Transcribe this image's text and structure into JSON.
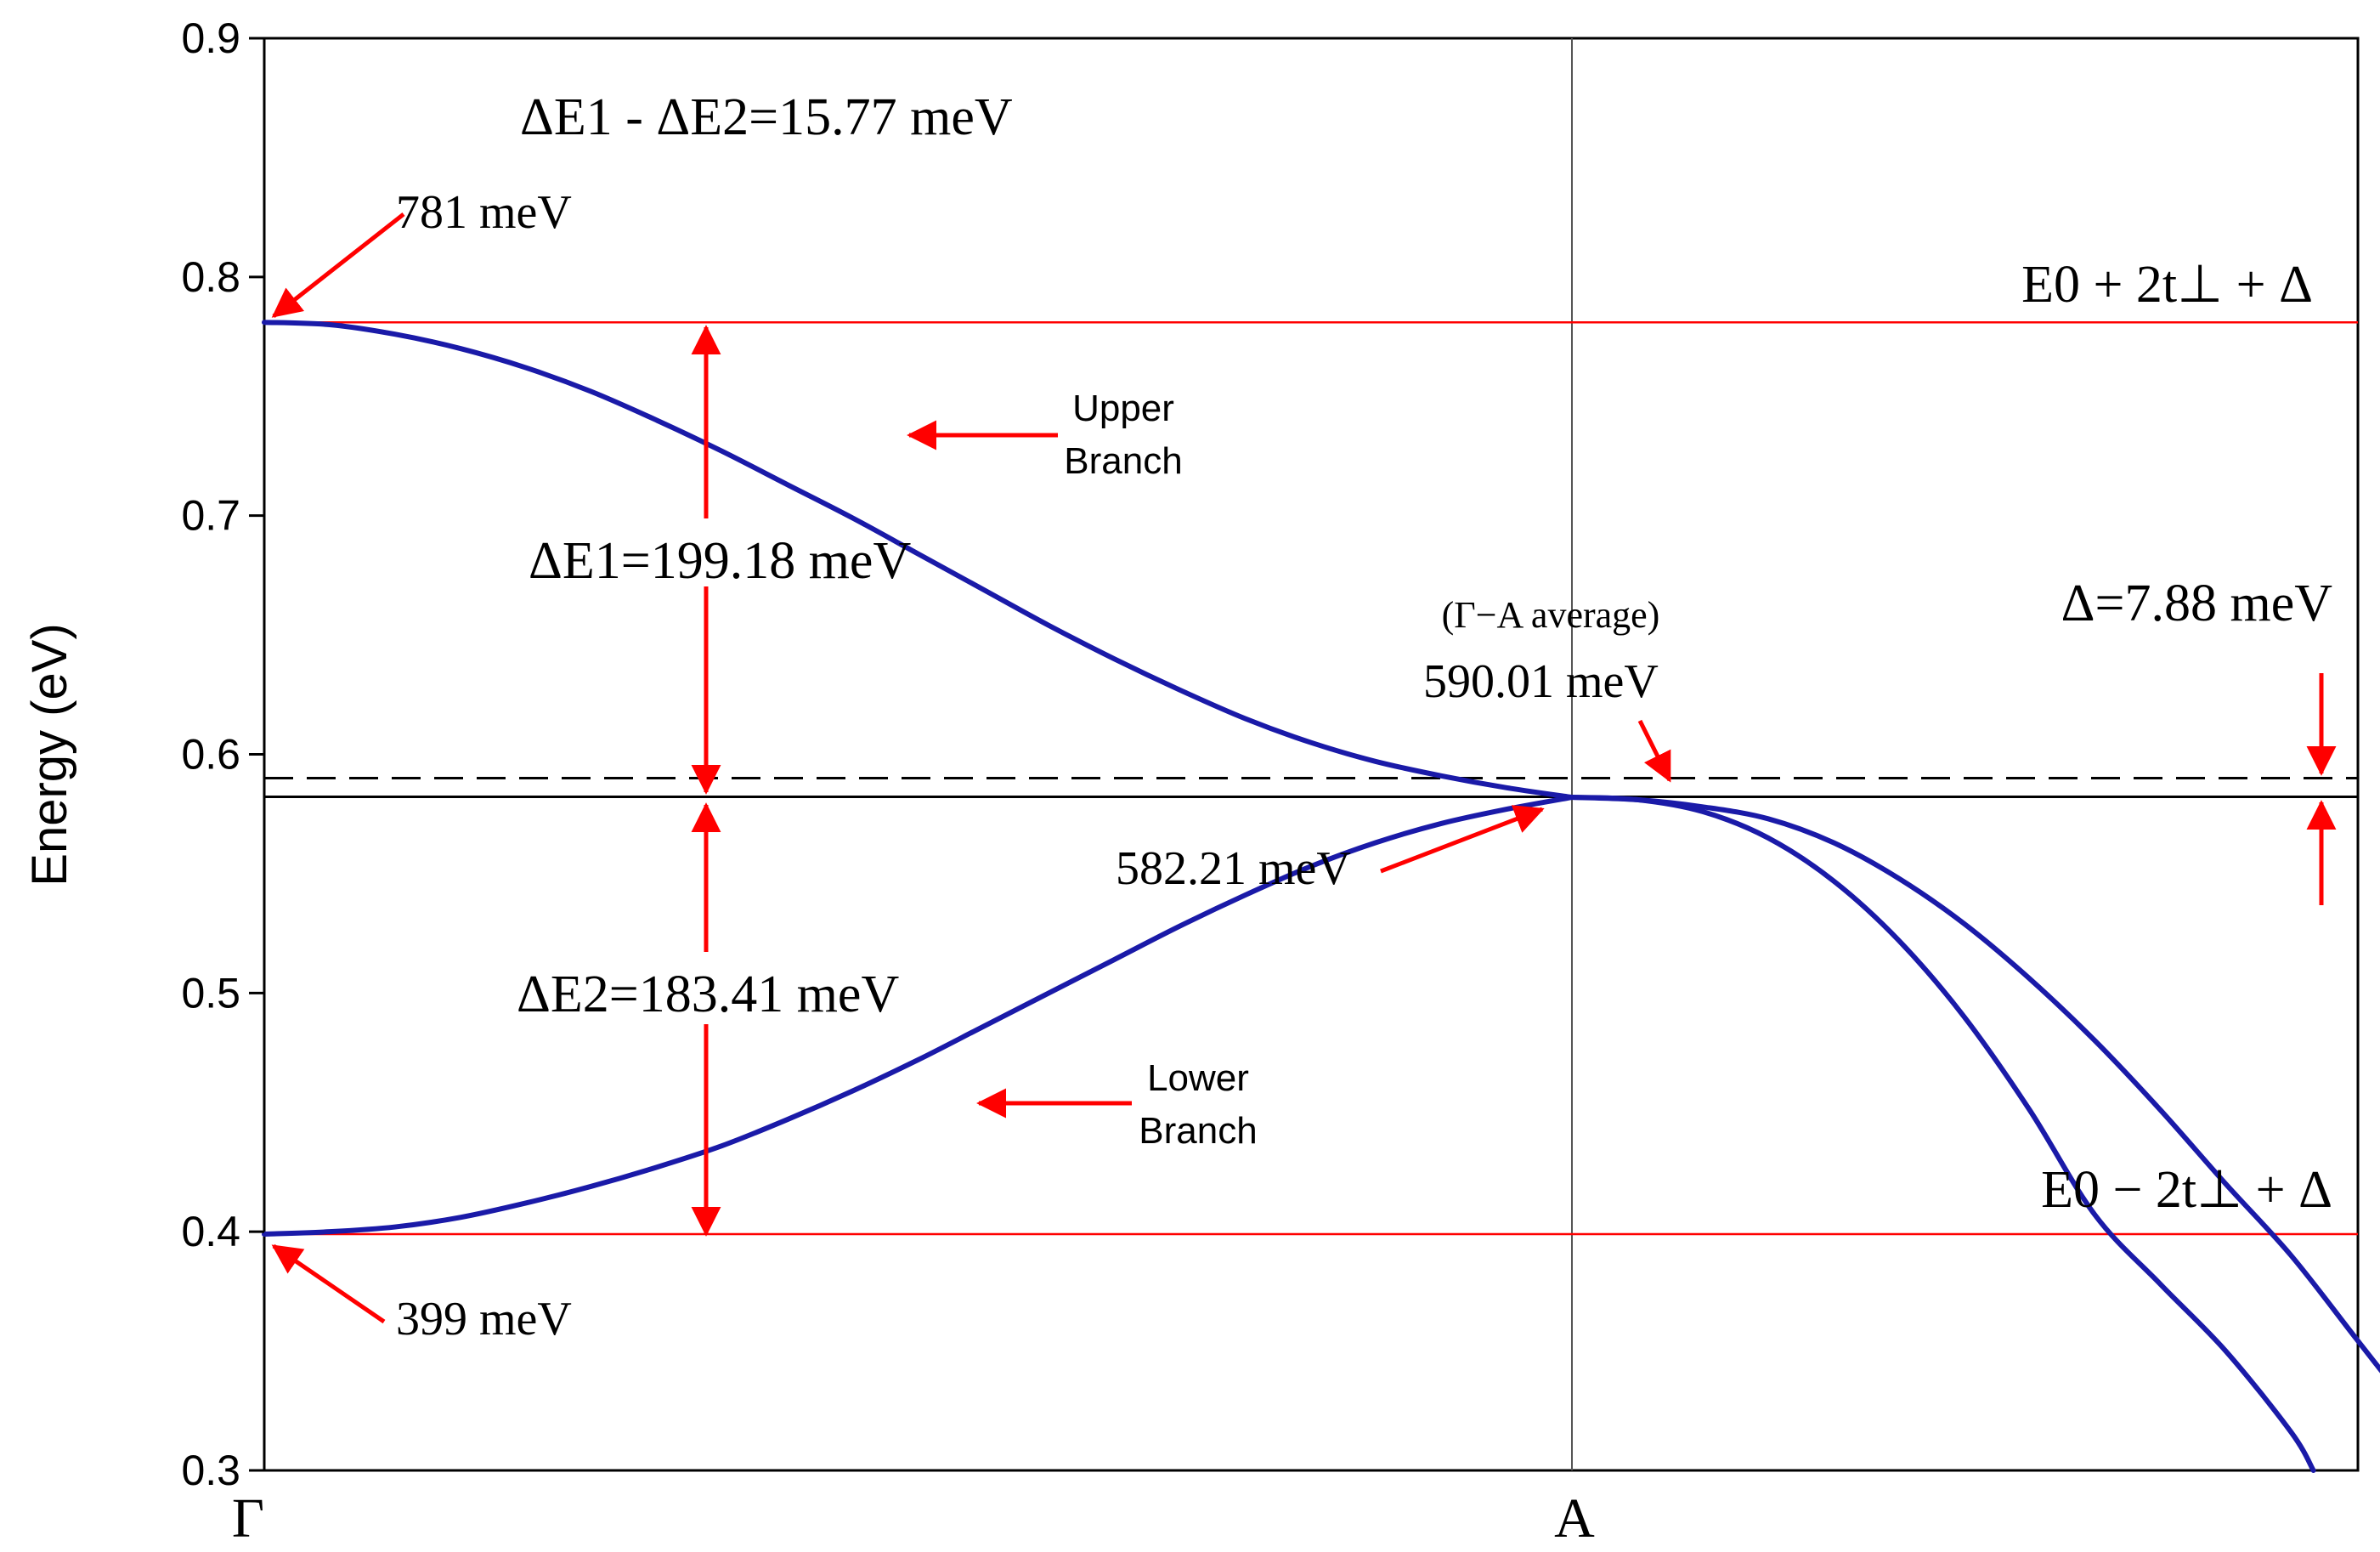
{
  "chart_data": {
    "type": "line",
    "ylabel": "Energy (eV)",
    "ylim": [
      0.3,
      0.9
    ],
    "y_ticks": [
      "0.9",
      "0.8",
      "0.7",
      "0.6",
      "0.5",
      "0.4",
      "0.3"
    ],
    "x_tick_labels": [
      "Γ",
      "A"
    ],
    "grid": false,
    "colors": {
      "band": "#1a1aa8",
      "reference": "#ff0000",
      "arrow": "#ff0000"
    },
    "series": [
      {
        "x": [
          0,
          0.05,
          0.1,
          0.15,
          0.2,
          0.25,
          0.3,
          0.35,
          0.4,
          0.45,
          0.5,
          0.55,
          0.6,
          0.65,
          0.7,
          0.75,
          0.8,
          0.85,
          0.9,
          0.95,
          1.0
        ],
        "values": [
          0.781,
          0.78,
          0.776,
          0.77,
          0.762,
          0.752,
          0.74,
          0.727,
          0.713,
          0.699,
          0.684,
          0.669,
          0.654,
          0.64,
          0.627,
          0.615,
          0.605,
          0.597,
          0.591,
          0.586,
          0.582
        ]
      },
      {
        "x": [
          0,
          0.05,
          0.1,
          0.15,
          0.2,
          0.25,
          0.3,
          0.35,
          0.4,
          0.45,
          0.5,
          0.55,
          0.6,
          0.65,
          0.7,
          0.75,
          0.8,
          0.85,
          0.9,
          0.95,
          1.0
        ],
        "values": [
          0.399,
          0.4,
          0.402,
          0.406,
          0.412,
          0.419,
          0.427,
          0.436,
          0.447,
          0.459,
          0.472,
          0.486,
          0.5,
          0.514,
          0.528,
          0.541,
          0.553,
          0.563,
          0.571,
          0.577,
          0.582
        ]
      },
      {
        "x": [
          1.0,
          1.05,
          1.1,
          1.15,
          1.2,
          1.25,
          1.3,
          1.35,
          1.4,
          1.45,
          1.5,
          1.55,
          1.567
        ],
        "values": [
          0.582,
          0.581,
          0.576,
          0.565,
          0.547,
          0.522,
          0.49,
          0.451,
          0.407,
          0.378,
          0.35,
          0.316,
          0.3
        ]
      },
      {
        "x": [
          1.0,
          1.05,
          1.1,
          1.15,
          1.2,
          1.25,
          1.3,
          1.35,
          1.4,
          1.45,
          1.5,
          1.55,
          1.6,
          1.65,
          1.678
        ],
        "values": [
          0.582,
          0.581,
          0.578,
          0.573,
          0.563,
          0.548,
          0.529,
          0.506,
          0.48,
          0.451,
          0.42,
          0.39,
          0.355,
          0.32,
          0.3
        ]
      }
    ],
    "reference_lines": [
      {
        "y": 0.781,
        "style": "solid",
        "color": "#ff0000"
      },
      {
        "y": 0.399,
        "style": "solid",
        "color": "#ff0000"
      },
      {
        "y": 0.59001,
        "style": "dashed",
        "color": "#000000"
      },
      {
        "y": 0.58221,
        "style": "solid",
        "color": "#000000"
      }
    ],
    "annotations": {
      "delta_diff": "ΔE1 - ΔE2=15.77 meV",
      "top_value": "781 meV",
      "upper_line_label": "E0 + 2t⊥ + Δ",
      "upper_branch": [
        "Upper",
        "Branch"
      ],
      "delta_e1": "ΔE1=199.18 meV",
      "average_label": "(Γ−A average)",
      "average_value": "590.01 meV",
      "delta_label": "Δ=7.88 meV",
      "crossing_value": "582.21 meV",
      "delta_e2": "ΔE2=183.41 meV",
      "lower_branch": [
        "Lower",
        "Branch"
      ],
      "lower_line_label": "E0 − 2t⊥ + Δ",
      "bottom_value": "399 meV"
    }
  }
}
